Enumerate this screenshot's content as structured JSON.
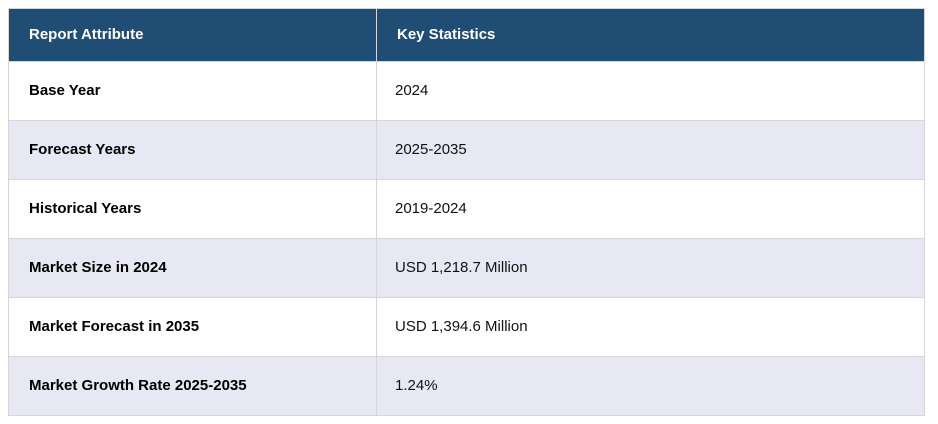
{
  "chart_data": {
    "type": "table",
    "title": "Report Attribute / Key Statistics summary table",
    "columns": [
      "Report Attribute",
      "Key Statistics"
    ],
    "rows": [
      {
        "attribute": "Base Year",
        "value": "2024"
      },
      {
        "attribute": "Forecast Years",
        "value": "2025-2035"
      },
      {
        "attribute": "Historical Years",
        "value": "2019-2024"
      },
      {
        "attribute": "Market Size in 2024",
        "value": "USD 1,218.7 Million"
      },
      {
        "attribute": "Market Forecast in 2035",
        "value": "USD 1,394.6 Million"
      },
      {
        "attribute": "Market Growth Rate 2025-2035",
        "value": "1.24%"
      }
    ]
  },
  "colors": {
    "header_bg": "#1F4D74",
    "header_text": "#FFFFFF",
    "row_bg": "#FFFFFF",
    "row_alt_bg": "#E7E8F3",
    "border": "#D6D6D6",
    "attribute_text": "#000000",
    "value_text": "#111111"
  }
}
